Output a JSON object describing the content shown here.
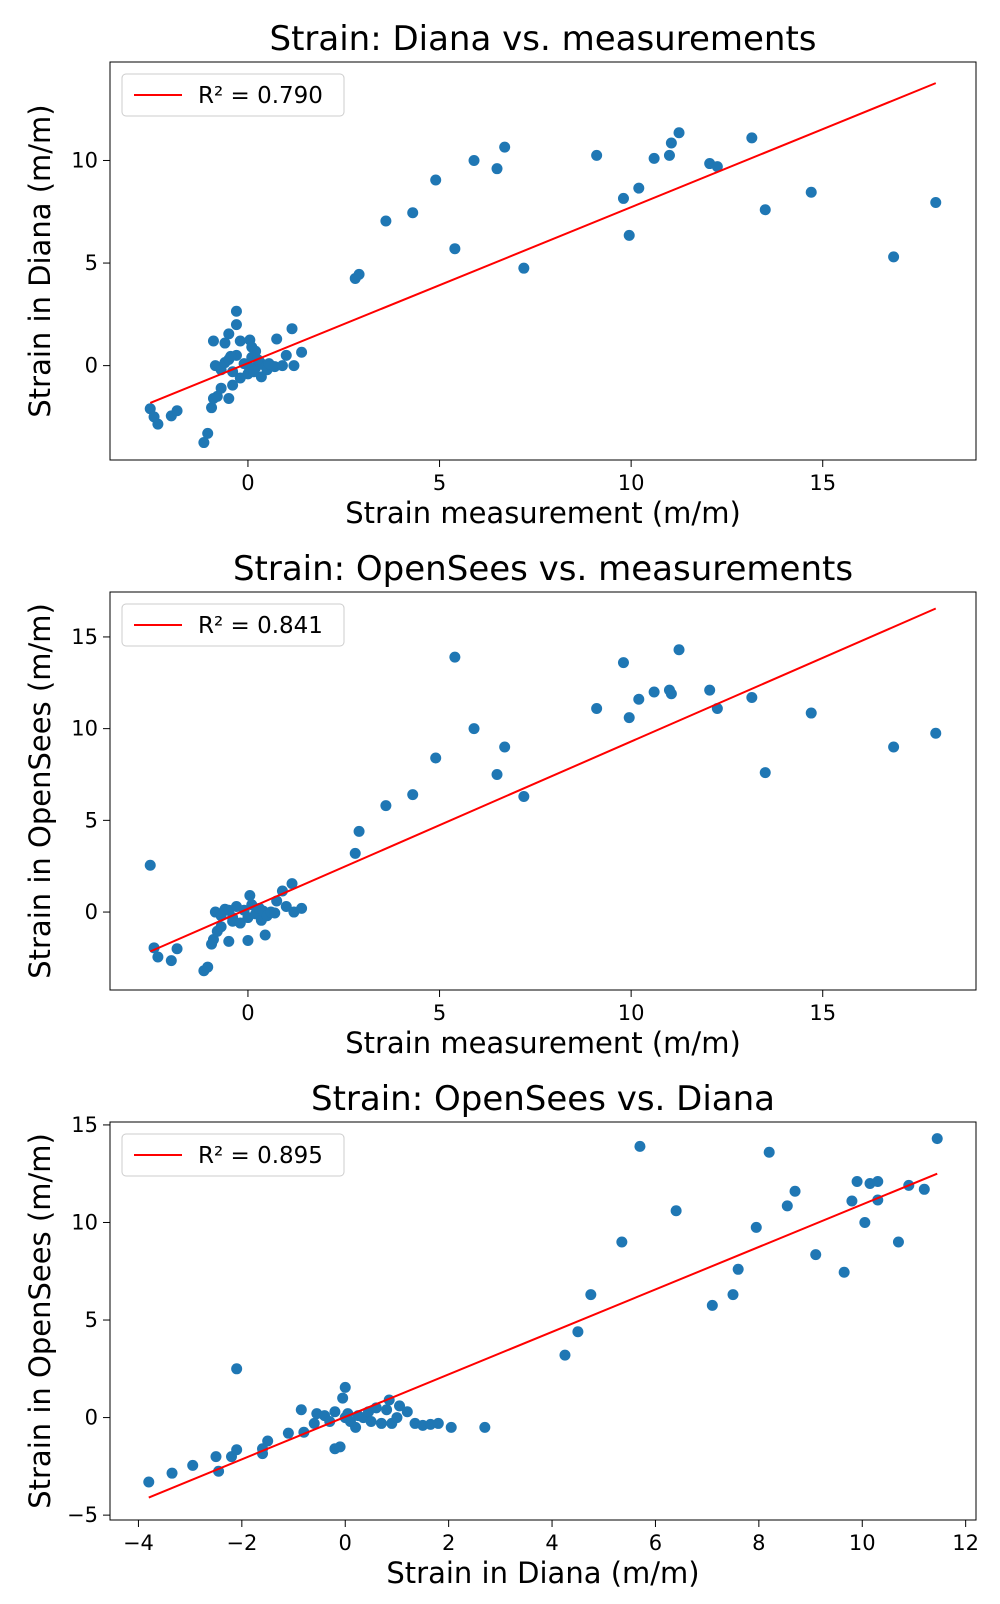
{
  "chart_data": [
    {
      "type": "scatter",
      "title": "Strain: Diana vs. measurements",
      "xlabel": "Strain measurement (m/m)",
      "ylabel": "Strain in Diana (m/m)",
      "xlim": [
        -3.6,
        19.0
      ],
      "ylim": [
        -4.6,
        14.8
      ],
      "xticks": [
        0,
        5,
        10,
        15
      ],
      "yticks": [
        0,
        5,
        10
      ],
      "grid": false,
      "legend_placement": "upper-left",
      "series": [
        {
          "color": "#1f77b4",
          "points": [
            [
              -2.55,
              -2.1
            ],
            [
              -2.45,
              -2.5
            ],
            [
              -2.35,
              -2.85
            ],
            [
              -2.0,
              -2.45
            ],
            [
              -1.85,
              -2.2
            ],
            [
              -1.15,
              -3.75
            ],
            [
              -1.05,
              -3.3
            ],
            [
              -0.95,
              -2.05
            ],
            [
              -0.9,
              -1.6
            ],
            [
              -0.8,
              -1.5
            ],
            [
              -0.7,
              -1.1
            ],
            [
              -0.5,
              -1.6
            ],
            [
              -0.4,
              -0.95
            ],
            [
              -0.9,
              1.2
            ],
            [
              -0.6,
              1.1
            ],
            [
              -0.5,
              1.55
            ],
            [
              -0.3,
              2.0
            ],
            [
              -0.3,
              2.65
            ],
            [
              -0.2,
              1.2
            ],
            [
              0.05,
              1.25
            ],
            [
              0.1,
              0.9
            ],
            [
              0.2,
              0.7
            ],
            [
              -0.85,
              0.0
            ],
            [
              -0.7,
              -0.2
            ],
            [
              -0.6,
              0.15
            ],
            [
              -0.5,
              0.3
            ],
            [
              -0.4,
              -0.3
            ],
            [
              -0.3,
              0.5
            ],
            [
              -0.2,
              -0.6
            ],
            [
              -0.1,
              0.1
            ],
            [
              0.0,
              -0.4
            ],
            [
              0.1,
              0.4
            ],
            [
              0.2,
              -0.1
            ],
            [
              0.3,
              0.2
            ],
            [
              0.35,
              -0.55
            ],
            [
              0.4,
              0.05
            ],
            [
              0.5,
              -0.2
            ],
            [
              0.6,
              0.0
            ],
            [
              0.7,
              -0.05
            ],
            [
              -0.45,
              0.45
            ],
            [
              0.0,
              0.0
            ],
            [
              0.15,
              -0.3
            ],
            [
              0.25,
              0.3
            ],
            [
              0.55,
              0.1
            ],
            [
              0.75,
              1.3
            ],
            [
              0.9,
              0.0
            ],
            [
              1.0,
              0.5
            ],
            [
              1.15,
              1.8
            ],
            [
              1.2,
              0.0
            ],
            [
              1.4,
              0.65
            ],
            [
              2.8,
              4.25
            ],
            [
              2.9,
              4.45
            ],
            [
              3.6,
              7.05
            ],
            [
              4.3,
              7.45
            ],
            [
              4.9,
              9.05
            ],
            [
              5.4,
              5.7
            ],
            [
              5.9,
              10.0
            ],
            [
              6.5,
              9.6
            ],
            [
              6.7,
              10.65
            ],
            [
              7.2,
              4.75
            ],
            [
              9.1,
              10.25
            ],
            [
              9.8,
              8.15
            ],
            [
              9.95,
              6.35
            ],
            [
              10.2,
              8.65
            ],
            [
              10.6,
              10.1
            ],
            [
              11.0,
              10.25
            ],
            [
              11.05,
              10.85
            ],
            [
              11.25,
              11.35
            ],
            [
              12.05,
              9.85
            ],
            [
              12.25,
              9.7
            ],
            [
              13.15,
              11.1
            ],
            [
              13.5,
              7.6
            ],
            [
              14.7,
              8.45
            ],
            [
              16.85,
              5.3
            ],
            [
              17.95,
              7.95
            ]
          ]
        },
        {
          "type": "line",
          "name": "R² = 0.790",
          "color": "#ff0000",
          "x": [
            -2.55,
            17.95
          ],
          "y": [
            -1.82,
            13.77
          ]
        }
      ]
    },
    {
      "type": "scatter",
      "title": "Strain: OpenSees vs. measurements",
      "xlabel": "Strain measurement (m/m)",
      "ylabel": "Strain in OpenSees (m/m)",
      "xlim": [
        -3.6,
        19.0
      ],
      "ylim": [
        -4.25,
        17.45
      ],
      "xticks": [
        0,
        5,
        10,
        15
      ],
      "yticks": [
        0,
        5,
        10,
        15
      ],
      "grid": false,
      "legend_placement": "upper-left",
      "series": [
        {
          "color": "#1f77b4",
          "points": [
            [
              -2.55,
              2.55
            ],
            [
              -2.45,
              -1.95
            ],
            [
              -2.35,
              -2.45
            ],
            [
              -2.0,
              -2.65
            ],
            [
              -1.85,
              -2.0
            ],
            [
              -1.15,
              -3.2
            ],
            [
              -1.05,
              -3.0
            ],
            [
              -0.95,
              -1.75
            ],
            [
              -0.9,
              -1.5
            ],
            [
              -0.8,
              -1.05
            ],
            [
              -0.7,
              -0.8
            ],
            [
              -0.5,
              -1.6
            ],
            [
              -0.4,
              -0.5
            ],
            [
              -0.85,
              0.0
            ],
            [
              -0.7,
              -0.2
            ],
            [
              -0.6,
              0.15
            ],
            [
              -0.5,
              0.1
            ],
            [
              -0.4,
              -0.3
            ],
            [
              -0.3,
              0.3
            ],
            [
              -0.2,
              -0.6
            ],
            [
              -0.1,
              0.1
            ],
            [
              0.0,
              -0.3
            ],
            [
              0.05,
              0.9
            ],
            [
              0.1,
              0.4
            ],
            [
              0.2,
              -0.1
            ],
            [
              0.3,
              0.2
            ],
            [
              0.35,
              -0.45
            ],
            [
              0.4,
              0.05
            ],
            [
              0.5,
              -0.2
            ],
            [
              0.6,
              0.0
            ],
            [
              0.7,
              -0.05
            ],
            [
              0.0,
              -1.55
            ],
            [
              0.45,
              -1.25
            ],
            [
              0.75,
              0.6
            ],
            [
              0.9,
              1.15
            ],
            [
              1.0,
              0.3
            ],
            [
              1.15,
              1.55
            ],
            [
              1.2,
              0.0
            ],
            [
              1.4,
              0.2
            ],
            [
              2.8,
              3.2
            ],
            [
              2.9,
              4.4
            ],
            [
              3.6,
              5.8
            ],
            [
              4.3,
              6.4
            ],
            [
              4.9,
              8.4
            ],
            [
              5.4,
              13.9
            ],
            [
              5.9,
              10.0
            ],
            [
              6.5,
              7.5
            ],
            [
              6.7,
              9.0
            ],
            [
              7.2,
              6.3
            ],
            [
              9.1,
              11.1
            ],
            [
              9.8,
              13.6
            ],
            [
              9.95,
              10.6
            ],
            [
              10.2,
              11.6
            ],
            [
              10.6,
              12.0
            ],
            [
              11.0,
              12.1
            ],
            [
              11.05,
              11.9
            ],
            [
              11.25,
              14.3
            ],
            [
              12.05,
              12.1
            ],
            [
              12.25,
              11.1
            ],
            [
              13.15,
              11.7
            ],
            [
              13.5,
              7.6
            ],
            [
              14.7,
              10.85
            ],
            [
              16.85,
              9.0
            ],
            [
              17.95,
              9.75
            ]
          ]
        },
        {
          "type": "line",
          "name": "R² = 0.841",
          "color": "#ff0000",
          "x": [
            -2.55,
            17.95
          ],
          "y": [
            -2.15,
            16.55
          ]
        }
      ]
    },
    {
      "type": "scatter",
      "title": "Strain: OpenSees vs. Diana",
      "xlabel": "Strain in Diana (m/m)",
      "ylabel": "Strain in OpenSees (m/m)",
      "xlim": [
        -4.55,
        12.2
      ],
      "ylim": [
        -5.25,
        15.15
      ],
      "xticks": [
        -4,
        -2,
        0,
        2,
        4,
        6,
        8,
        10,
        12
      ],
      "yticks": [
        -5,
        0,
        5,
        10,
        15
      ],
      "grid": false,
      "legend_placement": "upper-left",
      "series": [
        {
          "color": "#1f77b4",
          "points": [
            [
              -3.8,
              -3.3
            ],
            [
              -3.35,
              -2.85
            ],
            [
              -2.95,
              -2.45
            ],
            [
              -2.5,
              -2.0
            ],
            [
              -2.45,
              -2.75
            ],
            [
              -2.2,
              -2.0
            ],
            [
              -2.1,
              -1.65
            ],
            [
              -2.1,
              2.5
            ],
            [
              -1.6,
              -1.6
            ],
            [
              -1.6,
              -1.85
            ],
            [
              -1.5,
              -1.2
            ],
            [
              -1.1,
              -0.8
            ],
            [
              -0.85,
              0.4
            ],
            [
              -0.8,
              -0.75
            ],
            [
              -0.6,
              -0.3
            ],
            [
              -0.55,
              0.2
            ],
            [
              -0.4,
              0.1
            ],
            [
              -0.3,
              -0.2
            ],
            [
              -0.2,
              -1.6
            ],
            [
              -0.2,
              0.3
            ],
            [
              -0.1,
              -1.5
            ],
            [
              -0.05,
              1.0
            ],
            [
              0.0,
              1.55
            ],
            [
              0.05,
              0.2
            ],
            [
              0.0,
              0.0
            ],
            [
              0.1,
              -0.2
            ],
            [
              0.2,
              -0.5
            ],
            [
              0.25,
              0.1
            ],
            [
              0.35,
              0.0
            ],
            [
              0.45,
              0.3
            ],
            [
              0.5,
              -0.2
            ],
            [
              0.6,
              0.5
            ],
            [
              0.7,
              -0.3
            ],
            [
              0.8,
              0.4
            ],
            [
              0.85,
              0.9
            ],
            [
              0.9,
              -0.3
            ],
            [
              1.0,
              0.0
            ],
            [
              1.05,
              0.6
            ],
            [
              1.2,
              0.3
            ],
            [
              1.35,
              -0.3
            ],
            [
              1.5,
              -0.4
            ],
            [
              1.65,
              -0.35
            ],
            [
              1.8,
              -0.3
            ],
            [
              2.05,
              -0.5
            ],
            [
              2.7,
              -0.5
            ],
            [
              4.25,
              3.2
            ],
            [
              4.5,
              4.4
            ],
            [
              4.75,
              6.3
            ],
            [
              5.35,
              9.0
            ],
            [
              5.7,
              13.9
            ],
            [
              6.4,
              10.6
            ],
            [
              7.1,
              5.75
            ],
            [
              7.5,
              6.3
            ],
            [
              7.6,
              7.6
            ],
            [
              7.95,
              9.75
            ],
            [
              8.2,
              13.6
            ],
            [
              8.55,
              10.85
            ],
            [
              8.7,
              11.6
            ],
            [
              9.1,
              8.35
            ],
            [
              9.65,
              7.45
            ],
            [
              9.8,
              11.1
            ],
            [
              9.9,
              12.1
            ],
            [
              10.05,
              10.0
            ],
            [
              10.15,
              12.0
            ],
            [
              10.3,
              12.1
            ],
            [
              10.3,
              11.15
            ],
            [
              10.7,
              9.0
            ],
            [
              10.9,
              11.9
            ],
            [
              11.2,
              11.7
            ],
            [
              11.45,
              14.3
            ]
          ]
        },
        {
          "type": "line",
          "name": "R² = 0.895",
          "color": "#ff0000",
          "x": [
            -3.8,
            11.45
          ],
          "y": [
            -4.1,
            12.5
          ]
        }
      ]
    }
  ]
}
